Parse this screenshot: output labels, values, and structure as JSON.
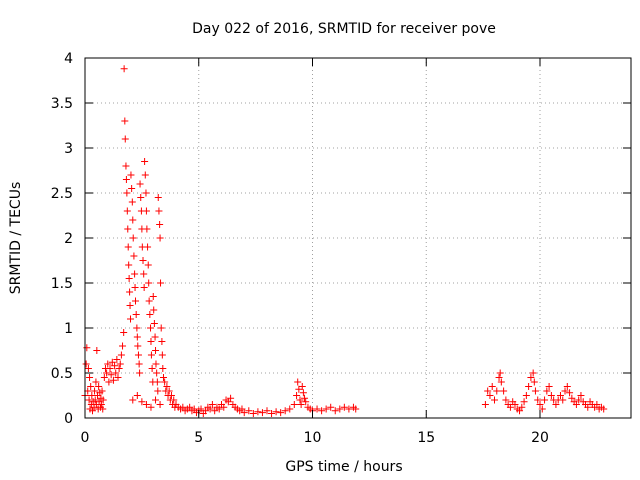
{
  "chart_data": {
    "type": "scatter",
    "title": "Day 022 of 2016, SRMTID for receiver pove",
    "xlabel": "GPS time / hours",
    "ylabel": "SRMTID / TECUs",
    "xlim": [
      0,
      24
    ],
    "ylim": [
      0,
      4
    ],
    "xticks": [
      0,
      5,
      10,
      15,
      20
    ],
    "yticks": [
      0,
      0.5,
      1,
      1.5,
      2,
      2.5,
      3,
      3.5,
      4
    ],
    "grid": true,
    "marker_color": "#ff0000",
    "marker": "plus",
    "series": [
      {
        "points": [
          [
            0.0,
            0.25
          ],
          [
            0.05,
            0.6
          ],
          [
            0.08,
            0.78
          ],
          [
            0.12,
            0.3
          ],
          [
            0.15,
            0.55
          ],
          [
            0.18,
            0.2
          ],
          [
            0.2,
            0.45
          ],
          [
            0.22,
            0.1
          ],
          [
            0.25,
            0.35
          ],
          [
            0.28,
            0.15
          ],
          [
            0.3,
            0.25
          ],
          [
            0.33,
            0.08
          ],
          [
            0.36,
            0.18
          ],
          [
            0.4,
            0.12
          ],
          [
            0.42,
            0.3
          ],
          [
            0.45,
            0.2
          ],
          [
            0.48,
            0.4
          ],
          [
            0.5,
            0.15
          ],
          [
            0.52,
            0.75
          ],
          [
            0.55,
            0.25
          ],
          [
            0.58,
            0.1
          ],
          [
            0.6,
            0.35
          ],
          [
            0.62,
            0.18
          ],
          [
            0.65,
            0.28
          ],
          [
            0.68,
            0.12
          ],
          [
            0.7,
            0.22
          ],
          [
            0.72,
            0.15
          ],
          [
            0.75,
            0.3
          ],
          [
            0.78,
            0.1
          ],
          [
            0.8,
            0.2
          ],
          [
            0.85,
            0.45
          ],
          [
            0.9,
            0.55
          ],
          [
            0.95,
            0.5
          ],
          [
            1.0,
            0.6
          ],
          [
            1.05,
            0.4
          ],
          [
            1.1,
            0.55
          ],
          [
            1.15,
            0.48
          ],
          [
            1.2,
            0.62
          ],
          [
            1.25,
            0.42
          ],
          [
            1.3,
            0.58
          ],
          [
            1.35,
            0.5
          ],
          [
            1.4,
            0.65
          ],
          [
            1.45,
            0.45
          ],
          [
            1.5,
            0.55
          ],
          [
            1.55,
            0.6
          ],
          [
            1.6,
            0.7
          ],
          [
            1.65,
            0.8
          ],
          [
            1.7,
            0.95
          ],
          [
            1.72,
            3.88
          ],
          [
            1.75,
            3.3
          ],
          [
            1.77,
            3.1
          ],
          [
            1.8,
            2.8
          ],
          [
            1.82,
            2.65
          ],
          [
            1.84,
            2.5
          ],
          [
            1.86,
            2.3
          ],
          [
            1.88,
            2.1
          ],
          [
            1.9,
            1.9
          ],
          [
            1.92,
            1.7
          ],
          [
            1.94,
            1.55
          ],
          [
            1.96,
            1.4
          ],
          [
            1.98,
            1.25
          ],
          [
            2.0,
            1.1
          ],
          [
            2.02,
            2.7
          ],
          [
            2.05,
            2.55
          ],
          [
            2.08,
            2.4
          ],
          [
            2.1,
            2.2
          ],
          [
            2.12,
            2.0
          ],
          [
            2.15,
            1.8
          ],
          [
            2.18,
            1.6
          ],
          [
            2.2,
            1.45
          ],
          [
            2.22,
            1.3
          ],
          [
            2.25,
            1.15
          ],
          [
            2.28,
            1.0
          ],
          [
            2.3,
            0.9
          ],
          [
            2.32,
            0.8
          ],
          [
            2.35,
            0.7
          ],
          [
            2.38,
            0.6
          ],
          [
            2.4,
            0.5
          ],
          [
            2.42,
            2.6
          ],
          [
            2.45,
            2.45
          ],
          [
            2.48,
            2.3
          ],
          [
            2.5,
            2.1
          ],
          [
            2.52,
            1.9
          ],
          [
            2.55,
            1.75
          ],
          [
            2.58,
            1.6
          ],
          [
            2.6,
            1.45
          ],
          [
            2.62,
            2.85
          ],
          [
            2.65,
            2.7
          ],
          [
            2.68,
            2.5
          ],
          [
            2.7,
            2.3
          ],
          [
            2.72,
            2.1
          ],
          [
            2.75,
            1.9
          ],
          [
            2.78,
            1.7
          ],
          [
            2.8,
            1.5
          ],
          [
            2.82,
            1.3
          ],
          [
            2.85,
            1.15
          ],
          [
            2.88,
            1.0
          ],
          [
            2.9,
            0.85
          ],
          [
            2.92,
            0.7
          ],
          [
            2.95,
            0.55
          ],
          [
            2.98,
            0.4
          ],
          [
            3.0,
            1.35
          ],
          [
            3.02,
            1.2
          ],
          [
            3.05,
            1.05
          ],
          [
            3.08,
            0.9
          ],
          [
            3.1,
            0.75
          ],
          [
            3.12,
            0.6
          ],
          [
            3.15,
            0.5
          ],
          [
            3.18,
            0.4
          ],
          [
            3.2,
            0.3
          ],
          [
            3.22,
            2.45
          ],
          [
            3.25,
            2.3
          ],
          [
            3.28,
            2.15
          ],
          [
            3.3,
            2.0
          ],
          [
            3.32,
            1.5
          ],
          [
            3.35,
            1.0
          ],
          [
            3.38,
            0.85
          ],
          [
            3.4,
            0.7
          ],
          [
            3.42,
            0.55
          ],
          [
            3.45,
            0.45
          ],
          [
            2.1,
            0.2
          ],
          [
            2.3,
            0.25
          ],
          [
            2.5,
            0.18
          ],
          [
            2.7,
            0.15
          ],
          [
            2.9,
            0.12
          ],
          [
            3.1,
            0.2
          ],
          [
            3.3,
            0.15
          ],
          [
            3.5,
            0.4
          ],
          [
            3.55,
            0.3
          ],
          [
            3.6,
            0.35
          ],
          [
            3.65,
            0.25
          ],
          [
            3.7,
            0.3
          ],
          [
            3.75,
            0.2
          ],
          [
            3.8,
            0.25
          ],
          [
            3.85,
            0.15
          ],
          [
            3.9,
            0.2
          ],
          [
            3.95,
            0.12
          ],
          [
            4.0,
            0.15
          ],
          [
            4.1,
            0.12
          ],
          [
            4.2,
            0.1
          ],
          [
            4.3,
            0.12
          ],
          [
            4.4,
            0.08
          ],
          [
            4.5,
            0.1
          ],
          [
            4.6,
            0.12
          ],
          [
            4.7,
            0.08
          ],
          [
            4.8,
            0.1
          ],
          [
            4.9,
            0.06
          ],
          [
            5.0,
            0.08
          ],
          [
            5.1,
            0.1
          ],
          [
            5.2,
            0.05
          ],
          [
            5.3,
            0.08
          ],
          [
            5.4,
            0.12
          ],
          [
            5.5,
            0.1
          ],
          [
            5.6,
            0.15
          ],
          [
            5.7,
            0.08
          ],
          [
            5.8,
            0.12
          ],
          [
            5.9,
            0.1
          ],
          [
            6.0,
            0.15
          ],
          [
            6.1,
            0.12
          ],
          [
            6.2,
            0.2
          ],
          [
            6.3,
            0.18
          ],
          [
            6.4,
            0.22
          ],
          [
            6.5,
            0.15
          ],
          [
            6.6,
            0.12
          ],
          [
            6.7,
            0.1
          ],
          [
            6.8,
            0.08
          ],
          [
            6.9,
            0.1
          ],
          [
            7.0,
            0.06
          ],
          [
            7.2,
            0.08
          ],
          [
            7.4,
            0.05
          ],
          [
            7.6,
            0.07
          ],
          [
            7.8,
            0.06
          ],
          [
            8.0,
            0.08
          ],
          [
            8.2,
            0.05
          ],
          [
            8.4,
            0.07
          ],
          [
            8.6,
            0.06
          ],
          [
            8.8,
            0.08
          ],
          [
            9.0,
            0.1
          ],
          [
            9.2,
            0.15
          ],
          [
            9.3,
            0.25
          ],
          [
            9.35,
            0.4
          ],
          [
            9.4,
            0.32
          ],
          [
            9.45,
            0.2
          ],
          [
            9.5,
            0.15
          ],
          [
            9.55,
            0.35
          ],
          [
            9.6,
            0.28
          ],
          [
            9.65,
            0.22
          ],
          [
            9.7,
            0.18
          ],
          [
            9.8,
            0.12
          ],
          [
            9.9,
            0.1
          ],
          [
            10.0,
            0.08
          ],
          [
            10.2,
            0.1
          ],
          [
            10.4,
            0.08
          ],
          [
            10.6,
            0.1
          ],
          [
            10.8,
            0.12
          ],
          [
            11.0,
            0.08
          ],
          [
            11.2,
            0.1
          ],
          [
            11.4,
            0.12
          ],
          [
            11.6,
            0.1
          ],
          [
            11.8,
            0.12
          ],
          [
            11.9,
            0.1
          ],
          [
            17.6,
            0.15
          ],
          [
            17.7,
            0.3
          ],
          [
            17.8,
            0.25
          ],
          [
            17.9,
            0.35
          ],
          [
            18.0,
            0.2
          ],
          [
            18.1,
            0.3
          ],
          [
            18.2,
            0.45
          ],
          [
            18.25,
            0.5
          ],
          [
            18.3,
            0.4
          ],
          [
            18.4,
            0.3
          ],
          [
            18.5,
            0.2
          ],
          [
            18.6,
            0.15
          ],
          [
            18.7,
            0.12
          ],
          [
            18.8,
            0.18
          ],
          [
            18.9,
            0.15
          ],
          [
            19.0,
            0.1
          ],
          [
            19.1,
            0.08
          ],
          [
            19.2,
            0.12
          ],
          [
            19.3,
            0.18
          ],
          [
            19.4,
            0.25
          ],
          [
            19.5,
            0.35
          ],
          [
            19.6,
            0.45
          ],
          [
            19.7,
            0.5
          ],
          [
            19.75,
            0.4
          ],
          [
            19.8,
            0.3
          ],
          [
            19.9,
            0.2
          ],
          [
            20.0,
            0.15
          ],
          [
            20.1,
            0.1
          ],
          [
            20.2,
            0.2
          ],
          [
            20.3,
            0.3
          ],
          [
            20.4,
            0.35
          ],
          [
            20.5,
            0.25
          ],
          [
            20.6,
            0.2
          ],
          [
            20.7,
            0.15
          ],
          [
            20.8,
            0.2
          ],
          [
            20.9,
            0.25
          ],
          [
            21.0,
            0.2
          ],
          [
            21.1,
            0.3
          ],
          [
            21.2,
            0.35
          ],
          [
            21.3,
            0.28
          ],
          [
            21.4,
            0.22
          ],
          [
            21.5,
            0.18
          ],
          [
            21.6,
            0.15
          ],
          [
            21.7,
            0.2
          ],
          [
            21.8,
            0.25
          ],
          [
            21.9,
            0.18
          ],
          [
            22.0,
            0.15
          ],
          [
            22.1,
            0.12
          ],
          [
            22.2,
            0.18
          ],
          [
            22.3,
            0.15
          ],
          [
            22.4,
            0.12
          ],
          [
            22.5,
            0.15
          ],
          [
            22.6,
            0.1
          ],
          [
            22.7,
            0.12
          ],
          [
            22.8,
            0.1
          ]
        ]
      }
    ]
  }
}
